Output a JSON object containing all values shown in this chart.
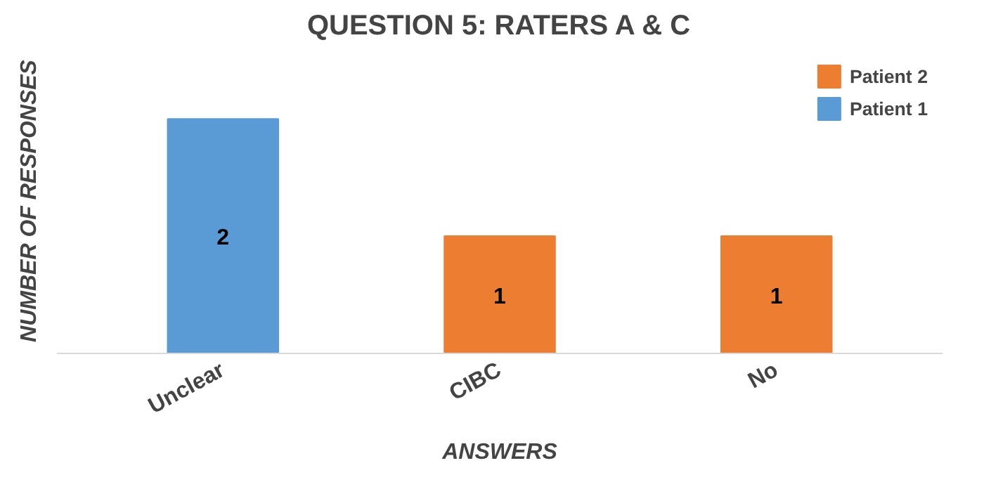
{
  "chart_data": {
    "type": "bar",
    "title": "QUESTION 5: RATERS A & C",
    "xlabel": "ANSWERS",
    "ylabel": "NUMBER OF RESPONSES",
    "categories": [
      "Unclear",
      "CIBC",
      "No"
    ],
    "stacked": true,
    "tick_labels": "x",
    "legend": "top right",
    "grid": false,
    "series": [
      {
        "name": "Patient 1",
        "color": "#5b9bd5",
        "values": [
          2,
          null,
          null
        ],
        "value_labels": [
          "2",
          null,
          null
        ]
      },
      {
        "name": "Patient 2",
        "color": "#ed7d31",
        "values": [
          null,
          1,
          1
        ],
        "value_labels": [
          null,
          "1",
          "1"
        ]
      }
    ]
  }
}
